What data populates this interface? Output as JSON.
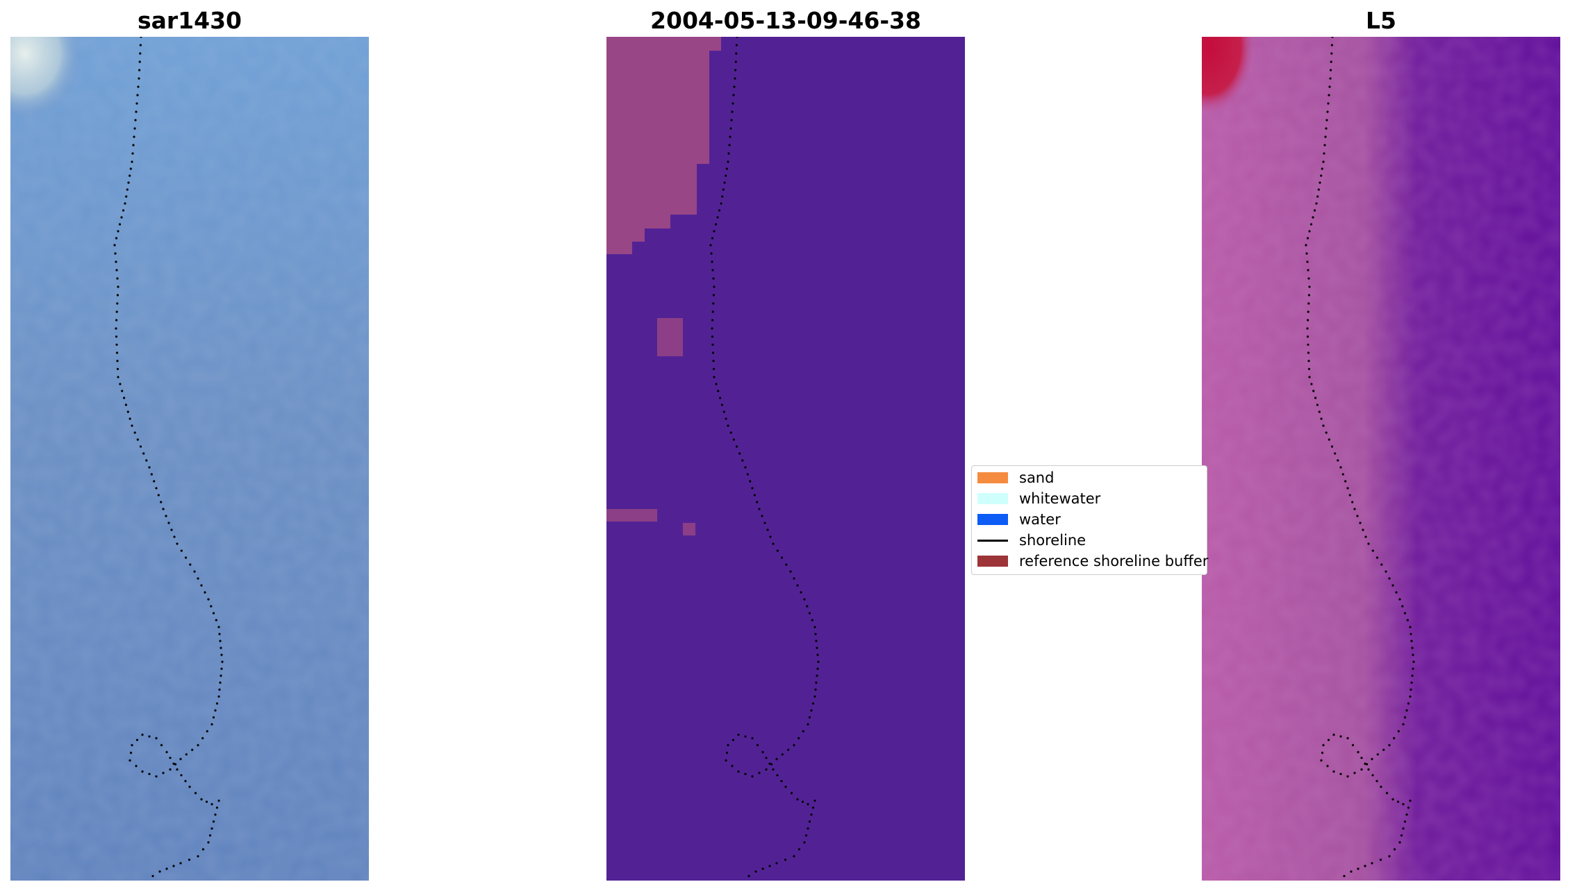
{
  "panels": [
    {
      "id": "rgb",
      "title": "sar1430"
    },
    {
      "id": "classification",
      "title": "2004-05-13-09-46-38"
    },
    {
      "id": "index",
      "title": "L5"
    }
  ],
  "legend": {
    "items": [
      {
        "label": "sand",
        "type": "patch",
        "color": "#f58b3f"
      },
      {
        "label": "whitewater",
        "type": "patch",
        "color": "#cffffd"
      },
      {
        "label": "water",
        "type": "patch",
        "color": "#0c5cf5"
      },
      {
        "label": "shoreline",
        "type": "line",
        "color": "#000000"
      },
      {
        "label": "reference shoreline buffer",
        "type": "patch",
        "color": "#9c3438"
      }
    ]
  },
  "colors": {
    "rgb_base": "#6d8fc2",
    "classification_base": "#522295",
    "classification_buffer": "#a04a84",
    "index_base": "#661699",
    "index_high": "#c40d3c",
    "index_mid": "#b55aa5",
    "shoreline": "#000000"
  }
}
